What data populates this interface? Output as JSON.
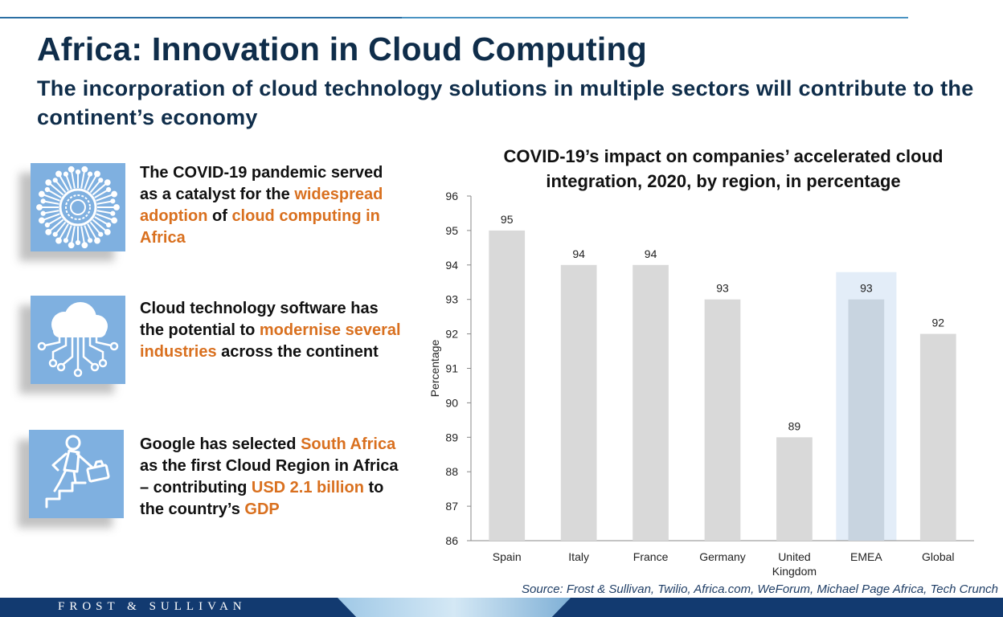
{
  "header": {
    "title": "Africa: Innovation in Cloud Computing",
    "subtitle": "The incorporation of cloud technology solutions in multiple sectors will contribute to the continent’s economy"
  },
  "points": [
    {
      "icon": "virus-icon",
      "segments": [
        {
          "text": "The COVID-19 pandemic served as a catalyst for the ",
          "highlight": false
        },
        {
          "text": "widespread adoption",
          "highlight": true
        },
        {
          "text": " of ",
          "highlight": false
        },
        {
          "text": "cloud computing in Africa",
          "highlight": true
        }
      ]
    },
    {
      "icon": "cloud-circuit-icon",
      "segments": [
        {
          "text": "Cloud technology software has the potential to ",
          "highlight": false
        },
        {
          "text": "modernise several industries",
          "highlight": true
        },
        {
          "text": " across the continent",
          "highlight": false
        }
      ]
    },
    {
      "icon": "businessman-climbing-stairs-icon",
      "segments": [
        {
          "text": "Google has selected ",
          "highlight": false
        },
        {
          "text": "South Africa",
          "highlight": true
        },
        {
          "text": " as the first Cloud Region in Africa – contributing ",
          "highlight": false
        },
        {
          "text": "USD 2.1 billion",
          "highlight": true
        },
        {
          "text": " to the country’s ",
          "highlight": false
        },
        {
          "text": "GDP",
          "highlight": true
        }
      ]
    }
  ],
  "chart_data": {
    "type": "bar",
    "title": "COVID-19’s impact on companies’ accelerated cloud integration, 2020, by region, in percentage",
    "xlabel": "",
    "ylabel": "Percentage",
    "categories": [
      "Spain",
      "Italy",
      "France",
      "Germany",
      "United Kingdom",
      "EMEA",
      "Global"
    ],
    "values": [
      95,
      94,
      94,
      93,
      89,
      93,
      92
    ],
    "ylim": [
      86,
      96
    ],
    "yticks": [
      86,
      87,
      88,
      89,
      90,
      91,
      92,
      93,
      94,
      95,
      96
    ],
    "highlight_category": "EMEA",
    "data_labels": true,
    "grid": false,
    "colors": {
      "bar": "#d9d9d9",
      "highlight_bar": "#c8d4e0",
      "highlight_band": "#e3edf8"
    }
  },
  "source": "Source: Frost & Sullivan, Twilio, Africa.com, WeForum, Michael Page Africa, Tech Crunch",
  "footer": {
    "brand": "FROST & SULLIVAN"
  },
  "colors": {
    "accent": "#d9701f",
    "title": "#0f2d4a",
    "icon_bg": "#7fb0e0",
    "footer": "#123a70"
  }
}
